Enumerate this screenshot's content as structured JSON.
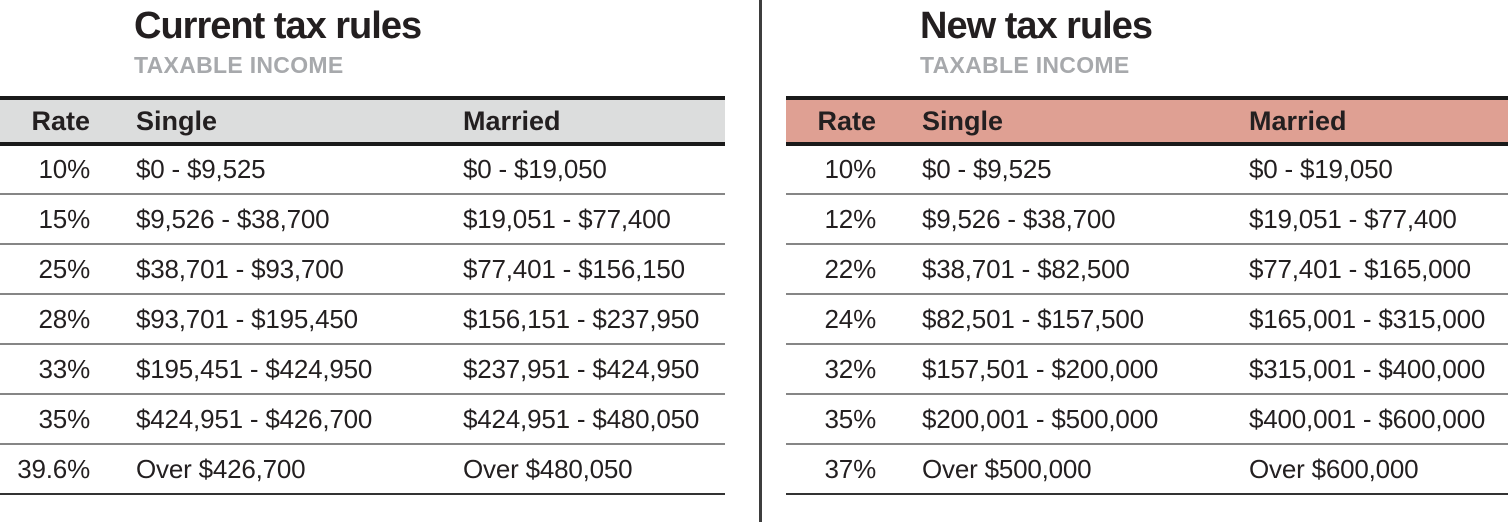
{
  "colors": {
    "current_header_bg": "#dcdddd",
    "new_header_bg": "#dfa093",
    "subtitle_gray": "#a7a9ac",
    "text": "#231f20",
    "row_divider": "#868686",
    "heavy_border": "#1a1a1a"
  },
  "chart_data": [
    {
      "type": "table",
      "title": "Current tax rules",
      "subtitle": "TAXABLE INCOME",
      "header_bg": "#dcdddd",
      "columns": [
        "Rate",
        "Single",
        "Married"
      ],
      "rows": [
        [
          "10%",
          "$0 - $9,525",
          "$0 - $19,050"
        ],
        [
          "15%",
          "$9,526 - $38,700",
          "$19,051 - $77,400"
        ],
        [
          "25%",
          "$38,701 - $93,700",
          "$77,401 - $156,150"
        ],
        [
          "28%",
          "$93,701 - $195,450",
          "$156,151 - $237,950"
        ],
        [
          "33%",
          "$195,451 - $424,950",
          "$237,951 - $424,950"
        ],
        [
          "35%",
          "$424,951 - $426,700",
          "$424,951 - $480,050"
        ],
        [
          "39.6%",
          "Over $426,700",
          "Over $480,050"
        ]
      ]
    },
    {
      "type": "table",
      "title": "New tax rules",
      "subtitle": "TAXABLE INCOME",
      "header_bg": "#dfa093",
      "columns": [
        "Rate",
        "Single",
        "Married"
      ],
      "rows": [
        [
          "10%",
          "$0 - $9,525",
          "$0 - $19,050"
        ],
        [
          "12%",
          "$9,526 - $38,700",
          "$19,051 - $77,400"
        ],
        [
          "22%",
          "$38,701 - $82,500",
          "$77,401 - $165,000"
        ],
        [
          "24%",
          "$82,501 - $157,500",
          "$165,001 - $315,000"
        ],
        [
          "32%",
          "$157,501 - $200,000",
          "$315,001 - $400,000"
        ],
        [
          "35%",
          "$200,001 - $500,000",
          "$400,001 - $600,000"
        ],
        [
          "37%",
          "Over $500,000",
          "Over $600,000"
        ]
      ]
    }
  ]
}
